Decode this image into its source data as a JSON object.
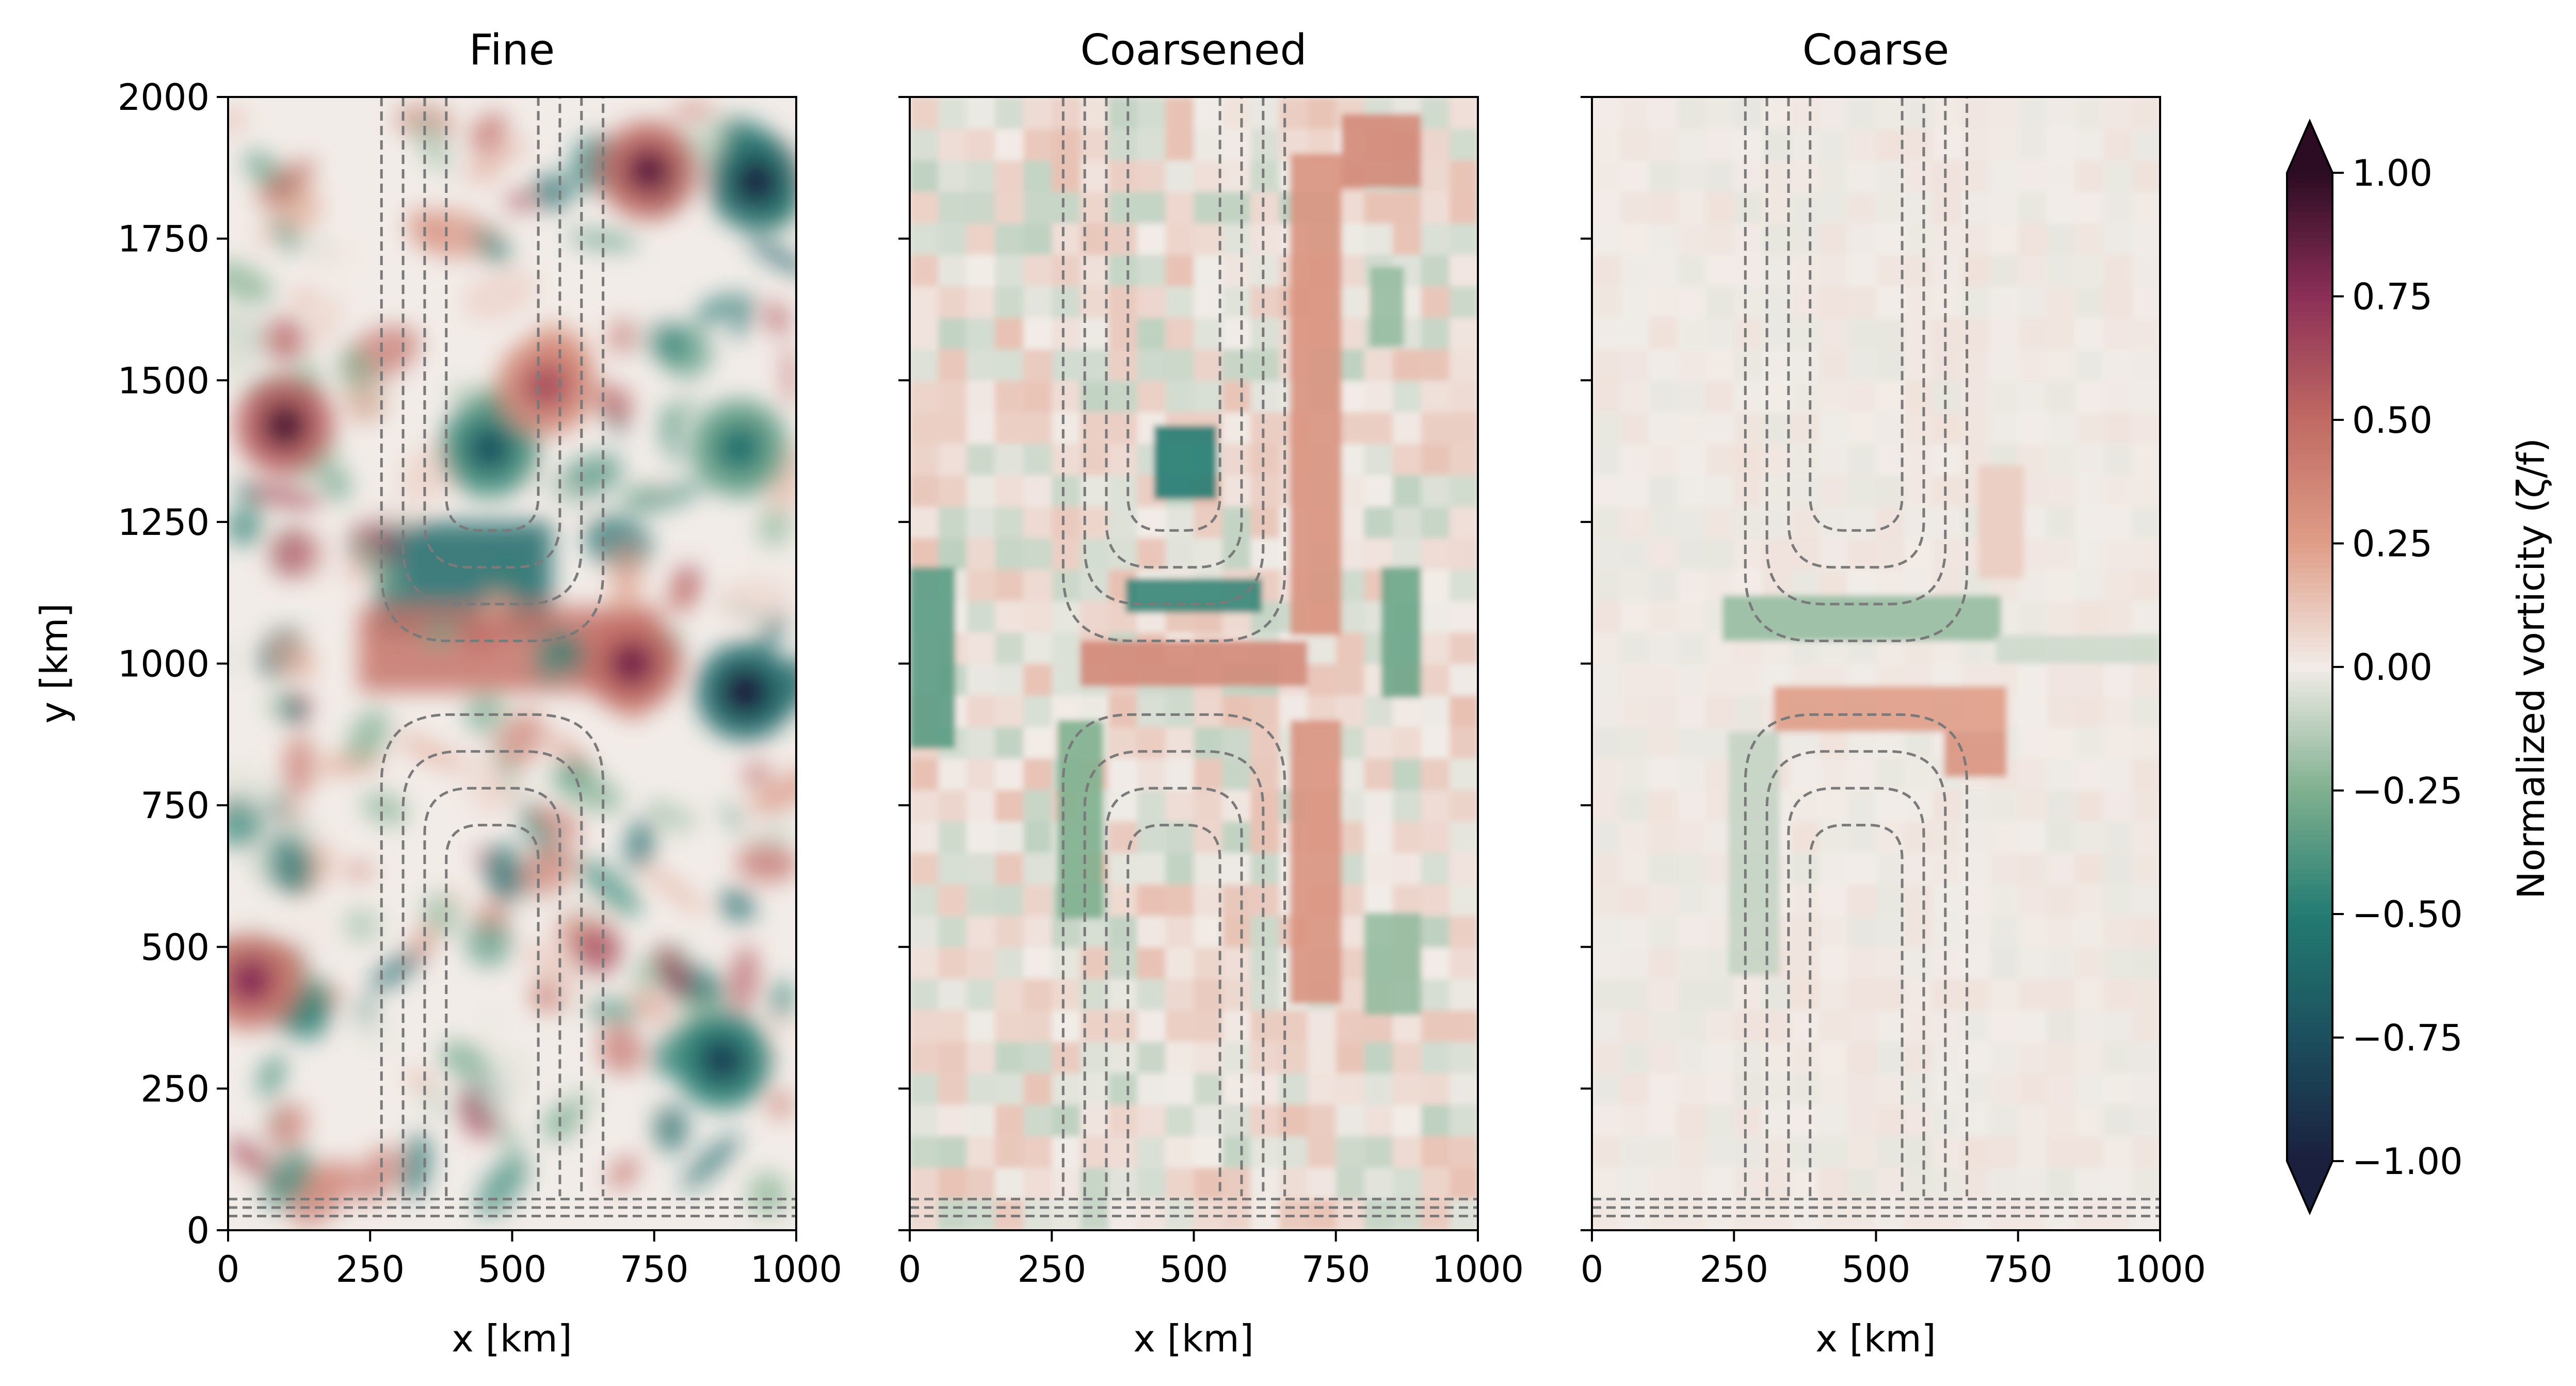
{
  "figure": {
    "colorbar": {
      "label": "Normalized vorticity (ζ/f)",
      "ticks": [
        "1.00",
        "0.75",
        "0.50",
        "0.25",
        "0.00",
        "−0.25",
        "−0.50",
        "−0.75",
        "−1.00"
      ],
      "tick_values": [
        1.0,
        0.75,
        0.5,
        0.25,
        0.0,
        -0.25,
        -0.5,
        -0.75,
        -1.0
      ],
      "range": [
        -1.0,
        1.0
      ],
      "extend": "both",
      "colors": [
        "#1a1f3d",
        "#1c4f5e",
        "#237c72",
        "#7fb08f",
        "#f2ece8",
        "#df9d87",
        "#c06a63",
        "#8c2f57",
        "#2b0c22"
      ]
    }
  },
  "chart_data": [
    {
      "type": "heatmap",
      "title": "Fine",
      "xlabel": "x [km]",
      "ylabel": "y [km]",
      "xlim": [
        0,
        1000
      ],
      "ylim": [
        0,
        2000
      ],
      "xticks": [
        "0",
        "250",
        "500",
        "750",
        "1000"
      ],
      "yticks": [
        "0",
        "250",
        "500",
        "750",
        "1000",
        "1250",
        "1500",
        "1750",
        "2000"
      ],
      "features": {
        "vortices": [
          {
            "x": 100,
            "y": 1420,
            "value": 0.9
          },
          {
            "x": 930,
            "y": 1850,
            "value": -0.95
          },
          {
            "x": 740,
            "y": 1870,
            "value": 0.85
          },
          {
            "x": 910,
            "y": 950,
            "value": -1.0
          },
          {
            "x": 870,
            "y": 300,
            "value": -0.8
          },
          {
            "x": 40,
            "y": 440,
            "value": 0.75
          },
          {
            "x": 460,
            "y": 1380,
            "value": -0.7
          },
          {
            "x": 710,
            "y": 1000,
            "value": 0.8
          },
          {
            "x": 900,
            "y": 1380,
            "value": -0.55
          },
          {
            "x": 560,
            "y": 1490,
            "value": 0.6
          }
        ],
        "bands": [
          {
            "x0": 260,
            "y0": 1050,
            "x1": 570,
            "y1": 1250,
            "value": -0.6
          },
          {
            "x0": 230,
            "y0": 950,
            "x1": 760,
            "y1": 1100,
            "value": 0.45
          }
        ]
      }
    },
    {
      "type": "heatmap",
      "title": "Coarsened",
      "xlabel": "x [km]",
      "xlim": [
        0,
        1000
      ],
      "ylim": [
        0,
        2000
      ],
      "xticks": [
        "0",
        "250",
        "500",
        "750",
        "1000"
      ],
      "cells": [
        {
          "x0": 380,
          "y0": 1090,
          "x1": 620,
          "y1": 1150,
          "value": -0.45
        },
        {
          "x0": 430,
          "y0": 1290,
          "x1": 540,
          "y1": 1420,
          "value": -0.5
        },
        {
          "x0": 0,
          "y0": 850,
          "x1": 80,
          "y1": 1170,
          "value": -0.35
        },
        {
          "x0": 830,
          "y0": 940,
          "x1": 900,
          "y1": 1170,
          "value": -0.3
        },
        {
          "x0": 300,
          "y0": 960,
          "x1": 700,
          "y1": 1040,
          "value": 0.35
        },
        {
          "x0": 670,
          "y0": 1050,
          "x1": 760,
          "y1": 1900,
          "value": 0.3
        },
        {
          "x0": 760,
          "y0": 1840,
          "x1": 900,
          "y1": 1970,
          "value": 0.35
        },
        {
          "x0": 670,
          "y0": 400,
          "x1": 760,
          "y1": 900,
          "value": 0.3
        },
        {
          "x0": 260,
          "y0": 550,
          "x1": 340,
          "y1": 900,
          "value": -0.25
        },
        {
          "x0": 800,
          "y0": 380,
          "x1": 900,
          "y1": 560,
          "value": -0.2
        },
        {
          "x0": 810,
          "y0": 1560,
          "x1": 870,
          "y1": 1700,
          "value": -0.2
        }
      ]
    },
    {
      "type": "heatmap",
      "title": "Coarse",
      "xlabel": "x [km]",
      "xlim": [
        0,
        1000
      ],
      "ylim": [
        0,
        2000
      ],
      "xticks": [
        "0",
        "250",
        "500",
        "750",
        "1000"
      ],
      "cells": [
        {
          "x0": 230,
          "y0": 1040,
          "x1": 720,
          "y1": 1120,
          "value": -0.2
        },
        {
          "x0": 320,
          "y0": 880,
          "x1": 730,
          "y1": 960,
          "value": 0.25
        },
        {
          "x0": 620,
          "y0": 800,
          "x1": 730,
          "y1": 880,
          "value": 0.3
        },
        {
          "x0": 240,
          "y0": 450,
          "x1": 330,
          "y1": 880,
          "value": -0.1
        },
        {
          "x0": 710,
          "y0": 1050,
          "x1": 1000,
          "y1": 1000,
          "value": -0.08
        },
        {
          "x0": 680,
          "y0": 1150,
          "x1": 760,
          "y1": 1350,
          "value": 0.1
        }
      ]
    }
  ]
}
